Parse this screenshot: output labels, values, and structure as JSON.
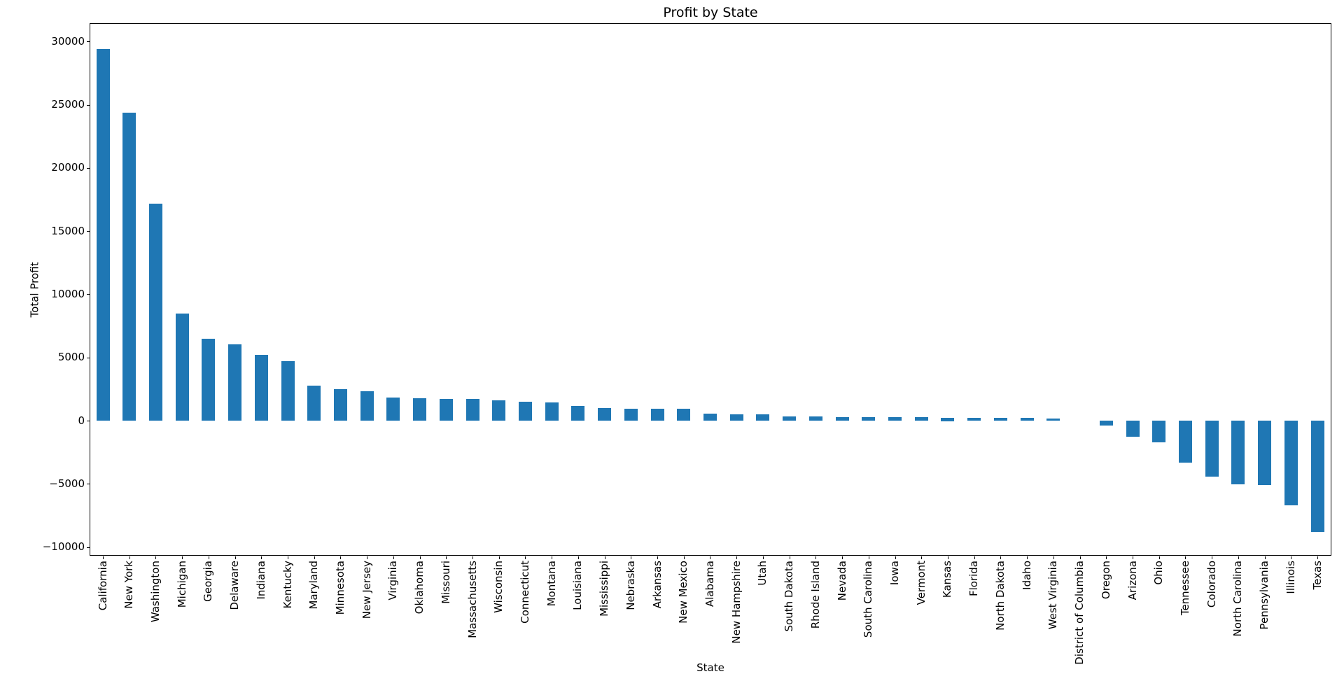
{
  "chart_data": {
    "type": "bar",
    "title": "Profit by State",
    "xlabel": "State",
    "ylabel": "Total Profit",
    "categories": [
      "California",
      "New York",
      "Washington",
      "Michigan",
      "Georgia",
      "Delaware",
      "Indiana",
      "Kentucky",
      "Maryland",
      "Minnesota",
      "New Jersey",
      "Virginia",
      "Oklahoma",
      "Missouri",
      "Massachusetts",
      "Wisconsin",
      "Connecticut",
      "Montana",
      "Louisiana",
      "Mississippi",
      "Nebraska",
      "Arkansas",
      "New Mexico",
      "Alabama",
      "New Hampshire",
      "Utah",
      "South Dakota",
      "Rhode Island",
      "Nevada",
      "South Carolina",
      "Iowa",
      "Vermont",
      "Kansas",
      "Florida",
      "North Dakota",
      "Idaho",
      "West Virginia",
      "District of Columbia",
      "Oregon",
      "Arizona",
      "Ohio",
      "Tennessee",
      "Colorado",
      "North Carolina",
      "Pennsylvania",
      "Illinois",
      "Texas"
    ],
    "values": [
      29400,
      24390,
      17180,
      8460,
      6460,
      6050,
      5220,
      4710,
      2790,
      2490,
      2310,
      1810,
      1790,
      1740,
      1700,
      1610,
      1520,
      1430,
      1190,
      1010,
      950,
      940,
      930,
      540,
      520,
      480,
      360,
      320,
      300,
      285,
      275,
      265,
      250,
      240,
      230,
      215,
      190,
      15,
      -400,
      -1290,
      -1700,
      -3320,
      -4430,
      -5060,
      -5100,
      -6720,
      -8790
    ],
    "yticks": [
      -10000,
      -5000,
      0,
      5000,
      10000,
      15000,
      20000,
      25000,
      30000
    ],
    "ylim": [
      -10690,
      31460
    ],
    "grid": false,
    "legend": "none",
    "bar_color": "#1f77b4",
    "axis_color": "#000000",
    "background": "#ffffff"
  }
}
